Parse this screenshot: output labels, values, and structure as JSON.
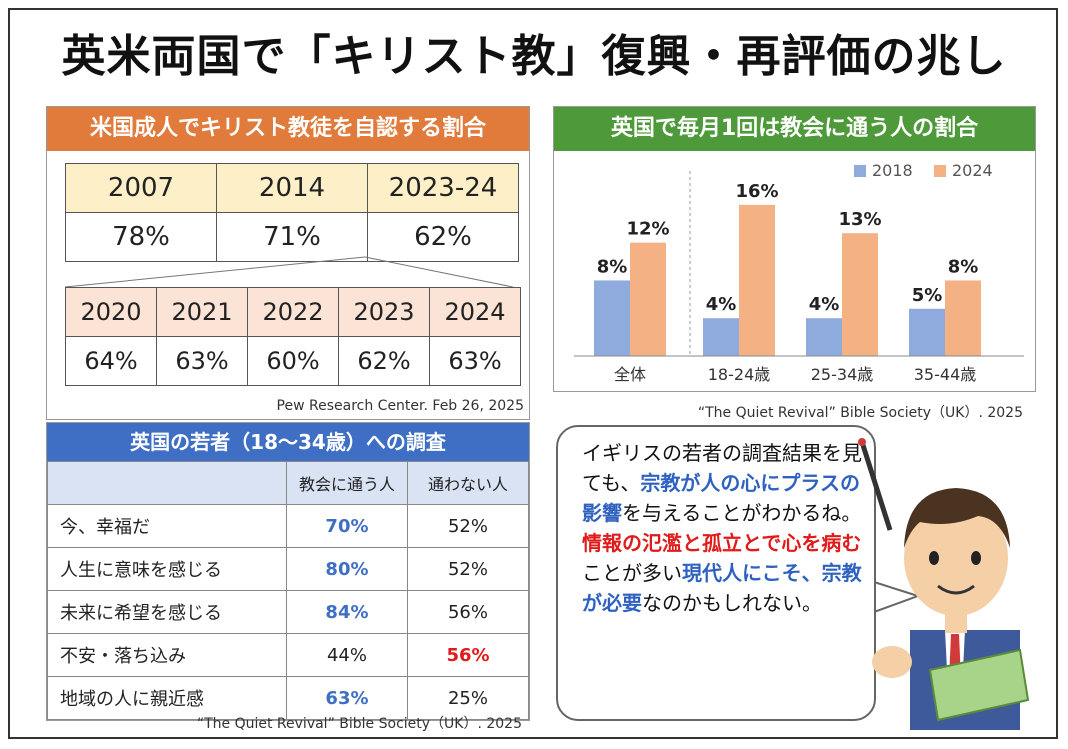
{
  "title": "英米両国で「キリスト教」復興・再評価の兆し",
  "us_panel": {
    "header": "米国成人でキリスト教徒を自認する割合",
    "main_years": [
      "2007",
      "2014",
      "2023-24"
    ],
    "main_values": [
      "78%",
      "71%",
      "62%"
    ],
    "sub_years": [
      "2020",
      "2021",
      "2022",
      "2023",
      "2024"
    ],
    "sub_values": [
      "64%",
      "63%",
      "60%",
      "62%",
      "63%"
    ],
    "source": "Pew Research Center. Feb 26, 2025"
  },
  "chart_data": {
    "type": "bar",
    "title": "英国で毎月1回は教会に通う人の割合",
    "categories": [
      "全体",
      "18-24歳",
      "25-34歳",
      "35-44歳"
    ],
    "series": [
      {
        "name": "2018",
        "values": [
          8,
          4,
          4,
          5
        ],
        "labels": [
          "8%",
          "4%",
          "4%",
          "5%"
        ],
        "color": "#8faadc"
      },
      {
        "name": "2024",
        "values": [
          12,
          16,
          13,
          8
        ],
        "labels": [
          "12%",
          "16%",
          "13%",
          "8%"
        ],
        "color": "#f4b183"
      }
    ],
    "ylim": [
      0,
      18
    ],
    "legend": "top-right",
    "grid": false,
    "source": "“The Quiet Revival” Bible Society（UK）. 2025"
  },
  "uk_survey": {
    "header": "英国の若者（18〜34歳）への調査",
    "col_attend": "教会に通う人",
    "col_not": "通わない人",
    "rows": [
      {
        "label": "今、幸福だ",
        "attend": "70%",
        "not": "52%",
        "hl": "attend"
      },
      {
        "label": "人生に意味を感じる",
        "attend": "80%",
        "not": "52%",
        "hl": "attend"
      },
      {
        "label": "未来に希望を感じる",
        "attend": "84%",
        "not": "56%",
        "hl": "attend"
      },
      {
        "label": "不安・落ち込み",
        "attend": "44%",
        "not": "56%",
        "hl": "not"
      },
      {
        "label": "地域の人に親近感",
        "attend": "63%",
        "not": "25%",
        "hl": "attend"
      }
    ],
    "source": "“The Quiet Revival” Bible Society（UK）. 2025"
  },
  "speech": {
    "p1": "イギリスの若者の調査結果を見ても、",
    "p2": "宗教が人の心にプラスの影響",
    "p3": "を与えることがわかるね。",
    "p4": "情報の氾濫と孤立とで心を病む",
    "p5": "ことが多い",
    "p6": "現代人にこそ、宗教が必要",
    "p7": "なのかもしれない。"
  },
  "colors": {
    "orange": "#e07b3c",
    "green": "#4e9a3a",
    "blue": "#3f6fc5",
    "red": "#e01b1b"
  }
}
